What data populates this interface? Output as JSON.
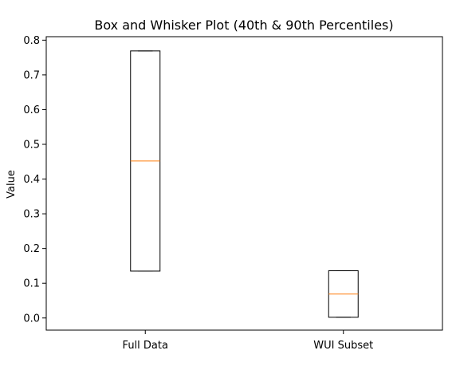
{
  "chart_data": {
    "type": "box",
    "title": "Box and Whisker Plot (40th & 90th Percentiles)",
    "xlabel": "",
    "ylabel": "Value",
    "ylim": [
      -0.035,
      0.81
    ],
    "yticks": [
      0.0,
      0.1,
      0.2,
      0.3,
      0.4,
      0.5,
      0.6,
      0.7,
      0.8
    ],
    "ytick_labels": [
      "0.0",
      "0.1",
      "0.2",
      "0.3",
      "0.4",
      "0.5",
      "0.6",
      "0.7",
      "0.8"
    ],
    "categories": [
      "Full Data",
      "WUI Subset"
    ],
    "boxes": [
      {
        "q1": 0.135,
        "median": 0.452,
        "q3": 0.769,
        "whisker_low": 0.135,
        "whisker_high": 0.769
      },
      {
        "q1": 0.002,
        "median": 0.069,
        "q3": 0.136,
        "whisker_low": 0.002,
        "whisker_high": 0.136
      }
    ],
    "grid": false,
    "colors": {
      "box": "#000000",
      "median": "#ff7f0e",
      "axes": "#000000"
    }
  }
}
